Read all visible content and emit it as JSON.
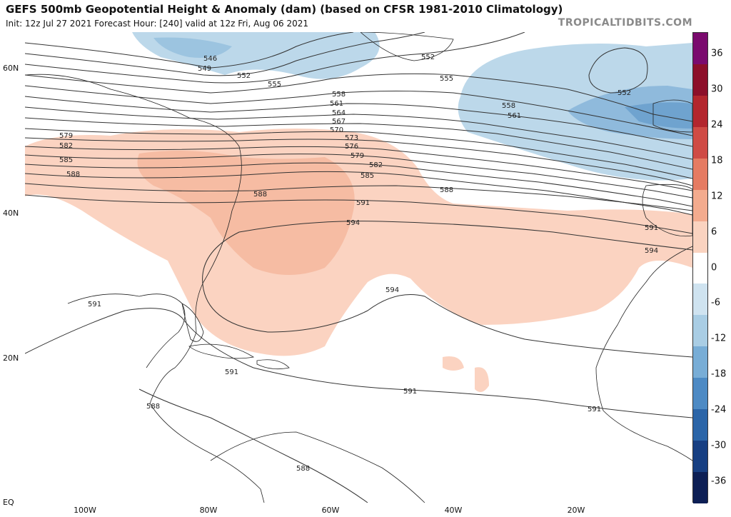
{
  "header": {
    "title": "GEFS 500mb Geopotential Height & Anomaly (dam) (based on CFSR 1981-2010 Climatology)",
    "subtitle": "Init: 12z Jul 27 2021   Forecast Hour: [240]   valid at 12z Fri, Aug 06 2021",
    "brand": "TROPICALTIDBITS.COM"
  },
  "axes": {
    "lat_labels": [
      "60N",
      "40N",
      "20N",
      "EQ"
    ],
    "lon_labels": [
      "100W",
      "80W",
      "60W",
      "40W",
      "20W"
    ]
  },
  "colorbar": {
    "ticks": [
      "36",
      "30",
      "24",
      "18",
      "12",
      "6",
      "0",
      "-6",
      "-12",
      "-18",
      "-24",
      "-30",
      "-36"
    ],
    "colors": [
      "#7a0a6e",
      "#8c0f2a",
      "#b3262e",
      "#cf4b45",
      "#e57b62",
      "#f3ab8e",
      "#fad3c0",
      "#ffffff",
      "#cfe3f0",
      "#a9cde4",
      "#78add6",
      "#4d8ac4",
      "#2b65a8",
      "#173f82",
      "#0d1f55"
    ]
  },
  "contours": {
    "labels": [
      "546",
      "549",
      "552",
      "555",
      "558",
      "561",
      "564",
      "567",
      "570",
      "573",
      "576",
      "579",
      "582",
      "585",
      "588",
      "591",
      "594"
    ]
  }
}
